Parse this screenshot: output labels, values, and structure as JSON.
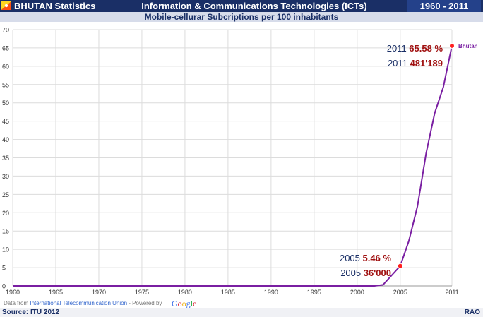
{
  "header": {
    "app_title": "BHUTAN Statistics",
    "title": "Information & Communications Technologies (ICTs)",
    "year_range": "1960 - 2011",
    "subtitle": "Mobile-cellurar Subcriptions per 100 inhabitants"
  },
  "footer": {
    "source": "Source: ITU 2012",
    "brand": "RAO",
    "credit_prefix": "Data from ",
    "credit_link": "International Telecommunication Union",
    "credit_mid": " - Powered by ",
    "credit_logo": "Google"
  },
  "colors": {
    "header_bg": "#1a2f66",
    "line": "#7a1fa2",
    "marker": "#ff2020",
    "year_text": "#1a2f66",
    "value_text": "#a01010"
  },
  "chart_data": {
    "type": "line",
    "title": "Mobile-cellurar Subcriptions per 100 inhabitants",
    "xlabel": "",
    "ylabel": "",
    "xlim": [
      1960,
      2011
    ],
    "ylim": [
      0,
      70
    ],
    "xticks": [
      1960,
      1965,
      1970,
      1975,
      1980,
      1985,
      1990,
      1995,
      2000,
      2005,
      2011
    ],
    "yticks": [
      0,
      5,
      10,
      15,
      20,
      25,
      30,
      35,
      40,
      45,
      50,
      55,
      60,
      65,
      70
    ],
    "grid": true,
    "series": [
      {
        "name": "Bhutan",
        "x": [
          1960,
          1965,
          1970,
          1975,
          1980,
          1985,
          1990,
          1995,
          2000,
          2001,
          2002,
          2003,
          2004,
          2005,
          2006,
          2007,
          2008,
          2009,
          2010,
          2011
        ],
        "y": [
          0,
          0,
          0,
          0,
          0,
          0,
          0,
          0,
          0,
          0,
          0,
          0.3,
          2.9,
          5.46,
          12.3,
          21.8,
          36.2,
          47.2,
          54.3,
          65.58
        ]
      }
    ],
    "annotations": [
      {
        "year": "2011",
        "value": "65.58 %"
      },
      {
        "year": "2011",
        "value": "481'189"
      },
      {
        "year": "2005",
        "value": "5.46 %"
      },
      {
        "year": "2005",
        "value": "36'000"
      }
    ],
    "highlight_points": [
      {
        "x": 2005,
        "y": 5.46
      },
      {
        "x": 2011,
        "y": 65.58
      }
    ]
  }
}
